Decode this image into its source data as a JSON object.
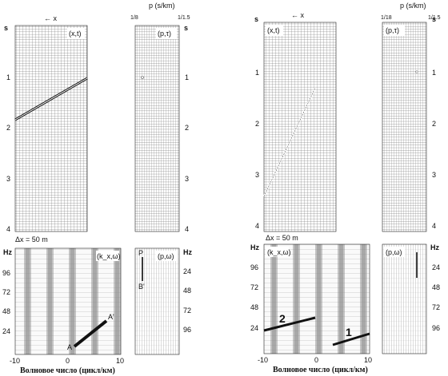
{
  "figure": {
    "left": {
      "p_header": "p (s/km)",
      "p_tick_left": "1/8",
      "p_tick_right": "1/1.5",
      "x_arrow": "← x",
      "xt_label": "(x,t)",
      "pt_label": "(p,τ)",
      "time_unit": "s",
      "time_ticks": [
        "1",
        "2",
        "3",
        "4"
      ],
      "dx_label": "Δx = 50 m",
      "hz_unit": "Hz",
      "fk_label": "(k_x,ω)",
      "pw_label": "(p,ω)",
      "fk_freq_ticks": [
        "96",
        "72",
        "48",
        "24"
      ],
      "pw_freq_ticks": [
        "24",
        "48",
        "72",
        "96"
      ],
      "k_ticks": [
        "-10",
        "0",
        "10"
      ],
      "k_axis_label": "Волновое число (цикл/км)",
      "point_A": "A",
      "point_A_prime": "A'",
      "point_P": "P",
      "point_B_prime": "B'"
    },
    "right": {
      "p_header": "p (s/km)",
      "p_tick_left": "1/18",
      "p_tick_right": "1/1.5",
      "x_arrow": "← x",
      "xt_label": "(x,t)",
      "pt_label": "(p,τ)",
      "time_unit": "s",
      "time_ticks": [
        "1",
        "2",
        "3",
        "4"
      ],
      "dx_label": "Δx = 50 m",
      "hz_unit": "Hz",
      "fk_label": "(k_x,ω)",
      "pw_label": "(p,ω)",
      "fk_freq_ticks": [
        "96",
        "72",
        "48",
        "24"
      ],
      "pw_freq_ticks": [
        "24",
        "48",
        "72",
        "96"
      ],
      "k_ticks": [
        "-10",
        "0",
        "10"
      ],
      "k_axis_label": "Волновое число (цикл/км)",
      "event_1": "1",
      "event_2": "2"
    }
  },
  "colors": {
    "ink": "#111111",
    "grid": "#333333",
    "stripe": "#b8b8b8",
    "panel": "#ffffff"
  }
}
